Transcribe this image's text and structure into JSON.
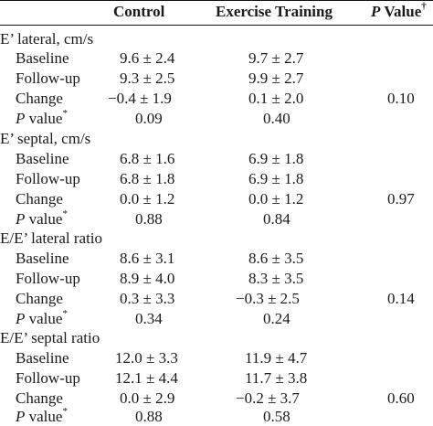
{
  "header": {
    "control": "Control",
    "exercise": "Exercise Training",
    "p_italic": "P",
    "p_rest": " Value",
    "p_mark": "†"
  },
  "sections": [
    {
      "title": "E’ lateral, cm/s",
      "rows": [
        {
          "label": "Baseline",
          "control": "9.6 ± 2.4",
          "exercise": "9.7 ± 2.7"
        },
        {
          "label": "Follow-up",
          "control": "9.3 ± 2.5",
          "exercise": "9.9 ± 2.7"
        },
        {
          "label": "Change",
          "control": "−0.4 ± 1.9",
          "exercise": "0.1 ± 2.0",
          "pvalue": "0.10"
        }
      ],
      "p_row": {
        "label_italic": "P",
        "label_rest": " value",
        "mark": "*",
        "control": "0.09",
        "exercise": "0.40"
      }
    },
    {
      "title": "E’ septal, cm/s",
      "rows": [
        {
          "label": "Baseline",
          "control": "6.8 ± 1.6",
          "exercise": "6.9 ± 1.8"
        },
        {
          "label": "Follow-up",
          "control": "6.8 ± 1.8",
          "exercise": "6.9 ± 1.8"
        },
        {
          "label": "Change",
          "control": "0.0 ± 1.2",
          "exercise": "0.0 ± 1.2",
          "pvalue": "0.97"
        }
      ],
      "p_row": {
        "label_italic": "P",
        "label_rest": " value",
        "mark": "*",
        "control": "0.88",
        "exercise": "0.84"
      }
    },
    {
      "title": "E/E’ lateral ratio",
      "rows": [
        {
          "label": "Baseline",
          "control": "8.6 ± 3.1",
          "exercise": "8.6 ± 3.5"
        },
        {
          "label": "Follow-up",
          "control": "8.9 ± 4.0",
          "exercise": "8.3 ± 3.5"
        },
        {
          "label": "Change",
          "control": "0.3 ± 3.3",
          "exercise": "−0.3 ± 2.5",
          "pvalue": "0.14"
        }
      ],
      "p_row": {
        "label_italic": "P",
        "label_rest": " value",
        "mark": "*",
        "control": "0.34",
        "exercise": "0.24"
      }
    },
    {
      "title": "E/E’ septal ratio",
      "rows": [
        {
          "label": "Baseline",
          "control": "12.0 ± 3.3",
          "exercise": "11.9 ± 4.7"
        },
        {
          "label": "Follow-up",
          "control": "12.1 ± 4.4",
          "exercise": "11.7 ± 3.8"
        },
        {
          "label": "Change",
          "control": "0.0 ± 2.9",
          "exercise": "−0.2 ± 3.7",
          "pvalue": "0.60"
        }
      ],
      "p_row": {
        "label_italic": "P",
        "label_rest": " value",
        "mark": "*",
        "control": "0.88",
        "exercise": "0.58"
      }
    }
  ]
}
